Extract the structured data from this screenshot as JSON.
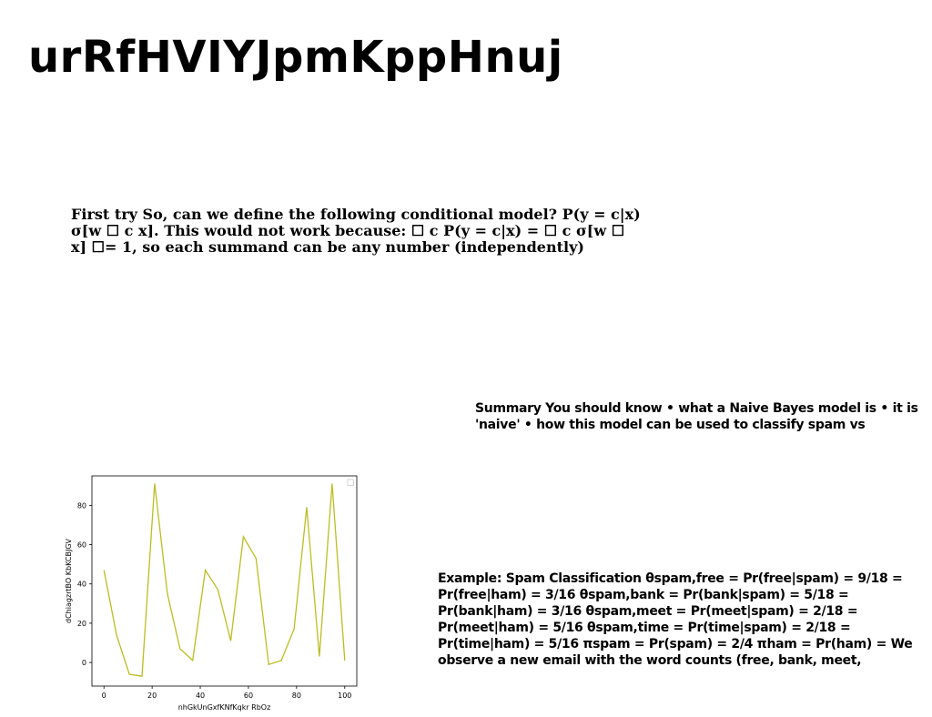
{
  "slide": {
    "title": "urRfHVIYJpmKppHnuj",
    "block_1": "First try So, can we define the following conditional model? P(y = c|x) σ[w ☐ c x]. This would not work because: ☐ c P(y = c|x) = ☐ c σ[w ☐ x] ☐= 1, so each summand can be any number (independently)",
    "block_2": "Summary You should know • what a Naive Bayes model is • it is 'naive' • how this model can be used to classify spam vs",
    "block_3": "Example: Spam Classification θspam,free = Pr(free|spam) = 9/18 = Pr(free|ham) = 3/16 θspam,bank = Pr(bank|spam) = 5/18 = Pr(bank|ham) = 3/16 θspam,meet = Pr(meet|spam) = 2/18 = Pr(meet|ham) = 5/16 θspam,time = Pr(time|spam) = 2/18 = Pr(time|ham) = 5/16 πspam = Pr(spam) = 2/4 πham = Pr(ham) = We observe a new email with the word counts (free, bank, meet,"
  },
  "chart_data": {
    "type": "line",
    "title": "",
    "xlabel": "nhGkUnGxfKNfKqkr RbOz",
    "ylabel": "dChiagzrtBO  KbKCBJGV",
    "xlim": [
      -5,
      105
    ],
    "ylim": [
      -12,
      95
    ],
    "xticks": [
      0,
      20,
      40,
      60,
      80,
      100
    ],
    "yticks": [
      0,
      20,
      40,
      60,
      80
    ],
    "grid": false,
    "legend": "top-right",
    "line_color": "#bcbd22",
    "series": [
      {
        "x": [
          0,
          5.26,
          10.53,
          15.79,
          21.05,
          26.32,
          31.58,
          36.84,
          42.11,
          47.37,
          52.63,
          57.89,
          63.16,
          68.42,
          73.68,
          78.95,
          84.21,
          89.47,
          94.74,
          100
        ],
        "y": [
          47,
          14,
          -6,
          -7,
          91,
          35,
          7,
          1,
          47,
          37,
          11,
          64,
          53,
          -1,
          1,
          17,
          79,
          3,
          91,
          1
        ]
      }
    ]
  }
}
